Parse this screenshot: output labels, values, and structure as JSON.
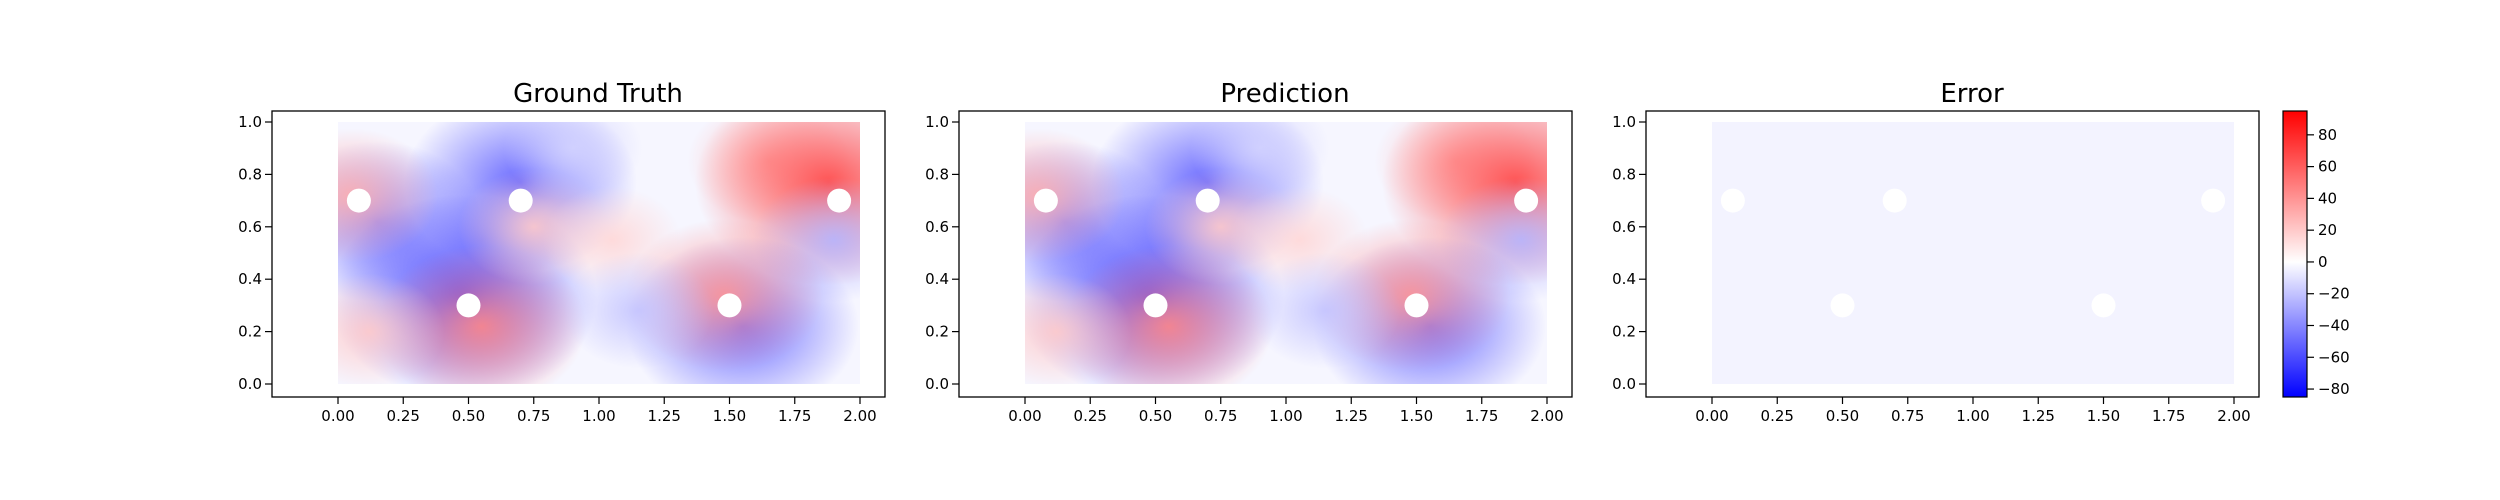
{
  "chart_data": [
    {
      "type": "heatmap",
      "title": "Ground Truth",
      "xlim": [
        0,
        2
      ],
      "ylim": [
        0,
        1
      ],
      "x_ticks": [
        "0.00",
        "0.25",
        "0.50",
        "0.75",
        "1.00",
        "1.25",
        "1.50",
        "1.75",
        "2.00"
      ],
      "y_ticks": [
        "0.0",
        "0.2",
        "0.4",
        "0.6",
        "0.8",
        "1.0"
      ],
      "obstacles": [
        {
          "x": 0.08,
          "y": 0.7
        },
        {
          "x": 0.7,
          "y": 0.7
        },
        {
          "x": 1.92,
          "y": 0.7
        },
        {
          "x": 0.5,
          "y": 0.3
        },
        {
          "x": 1.5,
          "y": 0.3
        }
      ],
      "field_features": [
        {
          "x": 0.15,
          "y": 0.62,
          "value": -45
        },
        {
          "x": 0.55,
          "y": 0.55,
          "value": -20
        },
        {
          "x": 0.7,
          "y": 0.77,
          "value": -55
        },
        {
          "x": 0.48,
          "y": 0.33,
          "value": -70
        },
        {
          "x": 0.55,
          "y": 0.22,
          "value": 45
        },
        {
          "x": 0.12,
          "y": 0.2,
          "value": 20
        },
        {
          "x": 0.75,
          "y": 0.6,
          "value": 20
        },
        {
          "x": 1.05,
          "y": 0.55,
          "value": 15
        },
        {
          "x": 1.65,
          "y": 0.85,
          "value": 25
        },
        {
          "x": 1.88,
          "y": 0.77,
          "value": 70
        },
        {
          "x": 1.9,
          "y": 0.55,
          "value": -25
        },
        {
          "x": 1.55,
          "y": 0.22,
          "value": -55
        },
        {
          "x": 1.48,
          "y": 0.34,
          "value": 40
        },
        {
          "x": 1.15,
          "y": 0.28,
          "value": -20
        },
        {
          "x": 0.9,
          "y": 0.9,
          "value": -15
        },
        {
          "x": 0.05,
          "y": 0.72,
          "value": 30
        }
      ]
    },
    {
      "type": "heatmap",
      "title": "Prediction",
      "xlim": [
        0,
        2
      ],
      "ylim": [
        0,
        1
      ],
      "x_ticks": [
        "0.00",
        "0.25",
        "0.50",
        "0.75",
        "1.00",
        "1.25",
        "1.50",
        "1.75",
        "2.00"
      ],
      "y_ticks": [
        "0.0",
        "0.2",
        "0.4",
        "0.6",
        "0.8",
        "1.0"
      ],
      "obstacles": [
        {
          "x": 0.08,
          "y": 0.7
        },
        {
          "x": 0.7,
          "y": 0.7
        },
        {
          "x": 1.92,
          "y": 0.7
        },
        {
          "x": 0.5,
          "y": 0.3
        },
        {
          "x": 1.5,
          "y": 0.3
        }
      ],
      "field_features": [
        {
          "x": 0.15,
          "y": 0.62,
          "value": -45
        },
        {
          "x": 0.55,
          "y": 0.55,
          "value": -20
        },
        {
          "x": 0.7,
          "y": 0.77,
          "value": -55
        },
        {
          "x": 0.48,
          "y": 0.33,
          "value": -70
        },
        {
          "x": 0.55,
          "y": 0.22,
          "value": 45
        },
        {
          "x": 0.12,
          "y": 0.2,
          "value": 20
        },
        {
          "x": 0.75,
          "y": 0.6,
          "value": 20
        },
        {
          "x": 1.05,
          "y": 0.55,
          "value": 15
        },
        {
          "x": 1.65,
          "y": 0.85,
          "value": 25
        },
        {
          "x": 1.88,
          "y": 0.77,
          "value": 70
        },
        {
          "x": 1.9,
          "y": 0.55,
          "value": -25
        },
        {
          "x": 1.55,
          "y": 0.22,
          "value": -55
        },
        {
          "x": 1.48,
          "y": 0.34,
          "value": 40
        },
        {
          "x": 1.15,
          "y": 0.28,
          "value": -20
        },
        {
          "x": 0.9,
          "y": 0.9,
          "value": -15
        },
        {
          "x": 0.05,
          "y": 0.72,
          "value": 30
        }
      ]
    },
    {
      "type": "heatmap",
      "title": "Error",
      "xlim": [
        0,
        2
      ],
      "ylim": [
        0,
        1
      ],
      "x_ticks": [
        "0.00",
        "0.25",
        "0.50",
        "0.75",
        "1.00",
        "1.25",
        "1.50",
        "1.75",
        "2.00"
      ],
      "y_ticks": [
        "0.0",
        "0.2",
        "0.4",
        "0.6",
        "0.8",
        "1.0"
      ],
      "obstacles": [
        {
          "x": 0.08,
          "y": 0.7
        },
        {
          "x": 0.7,
          "y": 0.7
        },
        {
          "x": 1.92,
          "y": 0.7
        },
        {
          "x": 0.5,
          "y": 0.3
        },
        {
          "x": 1.5,
          "y": 0.3
        }
      ],
      "field_uniform_value": -4,
      "colorbar": {
        "cmap": "bwr",
        "vmin": -85,
        "vmax": 95,
        "ticks": [
          "80",
          "60",
          "40",
          "20",
          "0",
          "−20",
          "−40",
          "−60",
          "−80"
        ],
        "tick_values": [
          80,
          60,
          40,
          20,
          0,
          -20,
          -40,
          -60,
          -80
        ],
        "low_color": "#0000ff",
        "mid_color": "#ffffff",
        "high_color": "#ff0000"
      }
    }
  ]
}
